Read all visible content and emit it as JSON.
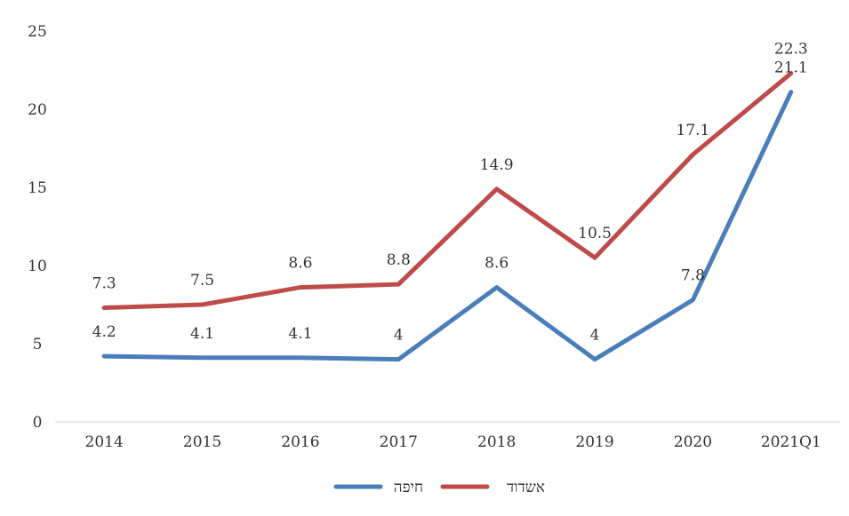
{
  "chart_data": {
    "type": "line",
    "categories": [
      "2014",
      "2015",
      "2016",
      "2017",
      "2018",
      "2019",
      "2020",
      "2021Q1"
    ],
    "series": [
      {
        "name": "חיפה",
        "color": "#4a7ebb",
        "values": [
          4.2,
          4.1,
          4.1,
          4,
          8.6,
          4,
          7.8,
          21.1
        ],
        "labels": [
          "4.2",
          "4.1",
          "4.1",
          "4",
          "8.6",
          "4",
          "7.8",
          "21.1"
        ]
      },
      {
        "name": "אשדוד",
        "color": "#be4b48",
        "values": [
          7.3,
          7.5,
          8.6,
          8.8,
          14.9,
          10.5,
          17.1,
          22.3
        ],
        "labels": [
          "7.3",
          "7.5",
          "8.6",
          "8.8",
          "14.9",
          "10.5",
          "17.1",
          "22.3"
        ]
      }
    ],
    "ylim": [
      0,
      25
    ],
    "yticks": [
      0,
      5,
      10,
      15,
      20,
      25
    ],
    "ytick_labels": [
      "0",
      "5",
      "10",
      "15",
      "20",
      "25"
    ],
    "grid": false,
    "legend_position": "bottom",
    "xlabel": "",
    "ylabel": ""
  }
}
